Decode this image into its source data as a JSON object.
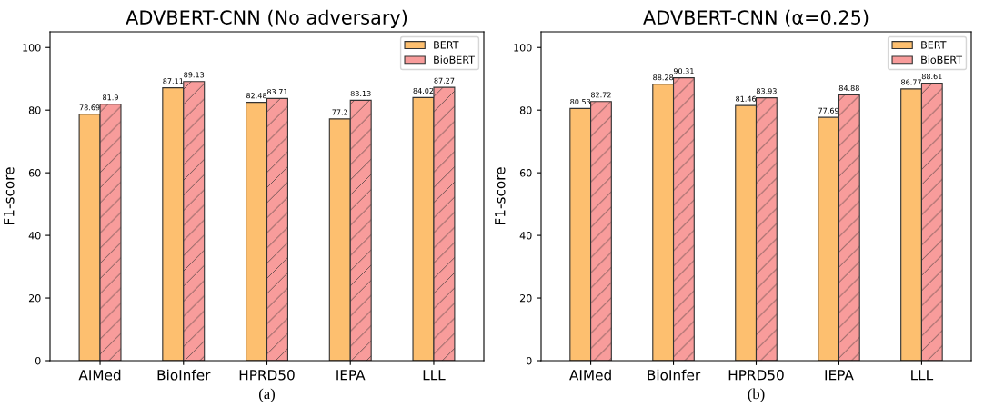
{
  "chart_data": [
    {
      "type": "bar",
      "title": "ADVBERT-CNN (No adversary)",
      "ylabel": "F1-score",
      "categories": [
        "AIMed",
        "BioInfer",
        "HPRD50",
        "IEPA",
        "LLL"
      ],
      "series": [
        {
          "name": "BERT",
          "color": "#fdbf6f",
          "values": [
            78.69,
            87.11,
            82.48,
            77.2,
            84.02
          ]
        },
        {
          "name": "BioBERT",
          "color": "#f89c9b",
          "values": [
            81.9,
            89.13,
            83.71,
            83.13,
            87.27
          ]
        }
      ],
      "ylim": [
        0,
        105
      ],
      "yticks": [
        0,
        20,
        40,
        60,
        80,
        100
      ],
      "data_labels": true,
      "legend": "top right",
      "grid": false,
      "annotations": [
        "(a)"
      ]
    },
    {
      "type": "bar",
      "title": "ADVBERT-CNN (α=0.25)",
      "ylabel": "F1-score",
      "categories": [
        "AIMed",
        "BioInfer",
        "HPRD50",
        "IEPA",
        "LLL"
      ],
      "series": [
        {
          "name": "BERT",
          "color": "#fdbf6f",
          "values": [
            80.53,
            88.28,
            81.46,
            77.69,
            86.77
          ]
        },
        {
          "name": "BioBERT",
          "color": "#f89c9b",
          "values": [
            82.72,
            90.31,
            83.93,
            84.88,
            88.61
          ]
        }
      ],
      "ylim": [
        0,
        105
      ],
      "yticks": [
        0,
        20,
        40,
        60,
        80,
        100
      ],
      "data_labels": true,
      "legend": "top right",
      "grid": false,
      "annotations": [
        "(b)"
      ]
    }
  ]
}
